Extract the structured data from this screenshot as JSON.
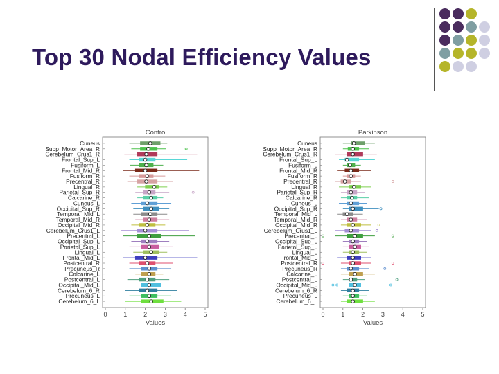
{
  "slide": {
    "title": "Top 30 Nodal Efficiency Values",
    "colors": {
      "title": "#2e1a5c",
      "dot_purple": "#4a2c5e",
      "dot_teal": "#7f9ea2",
      "dot_olive": "#b5b52a",
      "dot_lavender": "#cfcfe2"
    }
  },
  "chart_data": [
    {
      "type": "box",
      "title": "Contro",
      "xlabel": "Values",
      "xlim": [
        0,
        5
      ],
      "xticks": [
        "0",
        "1",
        "2",
        "3",
        "4",
        "5"
      ],
      "categories": [
        "Cuneus",
        "Supp_Motor_Area_R",
        "Cerebelum_Crus1_R",
        "Frontal_Sup_L",
        "Fusiform_L",
        "Frontal_Mid_R",
        "Fusiform_R",
        "Precentral_R",
        "Lingual_R",
        "Parietal_Sup_R",
        "Calcarine_R",
        "Cuneus_L",
        "Occipital_Sup_R",
        "Temporal_Mid_L",
        "Temporal_Mid_R",
        "Occipital_Mid_R",
        "Cerebelum_Crus1_L",
        "Precentral_L",
        "Occipital_Sup_L",
        "Parietal_Sup_L",
        "Lingual_L",
        "Frontal_Mid_L",
        "Postcentral_R",
        "Precuneus_R",
        "Calcarine_L",
        "Postcentral_L",
        "Occipital_Mid_L",
        "Cerebelum_6_R",
        "Precuneus_L",
        "Cerebelum_6_L"
      ],
      "colors": [
        "#6e9f6a",
        "#4cc24c",
        "#b03a5a",
        "#59d6d6",
        "#4db04d",
        "#7a2a1a",
        "#d79a9a",
        "#d6a3a3",
        "#7fcf4f",
        "#c7a6c7",
        "#59cfa6",
        "#5f9fd6",
        "#3f8fbf",
        "#8a8a8a",
        "#cf7f9f",
        "#bfbf3f",
        "#a58fd6",
        "#3f9f3f",
        "#9f7fbf",
        "#c95f9f",
        "#9fbf5f",
        "#3f3fbf",
        "#df4f6f",
        "#5f8fcf",
        "#bf9f4f",
        "#4f9f7f",
        "#4fbfdf",
        "#2f7f9f",
        "#3fbf5f",
        "#6fdf3f"
      ],
      "series": [
        {
          "name": "Cuneus",
          "values": [
            1.2,
            1.75,
            2.25,
            2.75,
            3.1
          ],
          "outliers": []
        },
        {
          "name": "Supp_Motor_Area_R",
          "values": [
            1.3,
            1.75,
            2.15,
            2.6,
            3.05
          ],
          "outliers": [
            4.05
          ]
        },
        {
          "name": "Cerebelum_Crus1_R",
          "values": [
            0.95,
            1.6,
            2.05,
            2.6,
            4.6
          ],
          "outliers": []
        },
        {
          "name": "Frontal_Sup_L",
          "values": [
            1.2,
            1.7,
            2.0,
            2.5,
            4.1
          ],
          "outliers": []
        },
        {
          "name": "Fusiform_L",
          "values": [
            1.25,
            1.7,
            2.05,
            2.4,
            2.9
          ],
          "outliers": []
        },
        {
          "name": "Frontal_Mid_R",
          "values": [
            0.9,
            1.5,
            2.0,
            2.6,
            4.7
          ],
          "outliers": []
        },
        {
          "name": "Fusiform_R",
          "values": [
            1.2,
            1.7,
            2.1,
            2.4,
            3.0
          ],
          "outliers": []
        },
        {
          "name": "Precentral_R",
          "values": [
            1.1,
            1.6,
            2.05,
            2.6,
            3.4
          ],
          "outliers": []
        },
        {
          "name": "Lingual_R",
          "values": [
            1.6,
            2.0,
            2.45,
            2.7,
            3.1
          ],
          "outliers": []
        },
        {
          "name": "Parietal_Sup_R",
          "values": [
            1.5,
            1.9,
            2.2,
            2.5,
            3.2
          ],
          "outliers": [
            4.4
          ]
        },
        {
          "name": "Calcarine_R",
          "values": [
            1.6,
            1.9,
            2.3,
            2.6,
            2.9
          ],
          "outliers": []
        },
        {
          "name": "Cuneus_L",
          "values": [
            1.3,
            1.8,
            2.1,
            2.6,
            3.3
          ],
          "outliers": []
        },
        {
          "name": "Occipital_Sup_R",
          "values": [
            1.4,
            1.9,
            2.3,
            2.7,
            3.2
          ],
          "outliers": []
        },
        {
          "name": "Temporal_Mid_L",
          "values": [
            1.4,
            1.8,
            2.25,
            2.6,
            3.1
          ],
          "outliers": []
        },
        {
          "name": "Temporal_Mid_R",
          "values": [
            1.5,
            1.9,
            2.2,
            2.6,
            3.2
          ],
          "outliers": []
        },
        {
          "name": "Occipital_Mid_R",
          "values": [
            1.3,
            1.7,
            2.1,
            2.5,
            3.0
          ],
          "outliers": []
        },
        {
          "name": "Cerebelum_Crus1_L",
          "values": [
            0.8,
            1.6,
            2.0,
            2.6,
            4.2
          ],
          "outliers": []
        },
        {
          "name": "Precentral_L",
          "values": [
            0.9,
            1.6,
            2.2,
            2.8,
            4.5
          ],
          "outliers": []
        },
        {
          "name": "Occipital_Sup_L",
          "values": [
            1.3,
            1.8,
            2.1,
            2.6,
            3.2
          ],
          "outliers": []
        },
        {
          "name": "Parietal_Sup_L",
          "values": [
            1.2,
            1.8,
            2.2,
            2.7,
            3.4
          ],
          "outliers": []
        },
        {
          "name": "Lingual_L",
          "values": [
            1.4,
            1.9,
            2.3,
            2.7,
            3.1
          ],
          "outliers": []
        },
        {
          "name": "Frontal_Mid_L",
          "values": [
            0.9,
            1.5,
            2.0,
            2.6,
            4.6
          ],
          "outliers": []
        },
        {
          "name": "Postcentral_R",
          "values": [
            1.2,
            1.7,
            2.1,
            2.5,
            3.4
          ],
          "outliers": []
        },
        {
          "name": "Precuneus_R",
          "values": [
            1.2,
            1.8,
            2.2,
            2.6,
            3.3
          ],
          "outliers": []
        },
        {
          "name": "Calcarine_L",
          "values": [
            1.5,
            1.8,
            2.2,
            2.5,
            2.9
          ],
          "outliers": []
        },
        {
          "name": "Postcentral_L",
          "values": [
            1.1,
            1.7,
            2.1,
            2.5,
            3.2
          ],
          "outliers": []
        },
        {
          "name": "Occipital_Mid_L",
          "values": [
            1.2,
            1.8,
            2.2,
            2.8,
            3.4
          ],
          "outliers": []
        },
        {
          "name": "Cerebelum_6_R",
          "values": [
            1.0,
            1.7,
            2.1,
            2.6,
            3.6
          ],
          "outliers": []
        },
        {
          "name": "Precuneus_L",
          "values": [
            1.2,
            1.8,
            2.2,
            2.6,
            3.3
          ],
          "outliers": []
        },
        {
          "name": "Cerebelum_6_L",
          "values": [
            1.0,
            1.8,
            2.3,
            2.9,
            3.8
          ],
          "outliers": []
        }
      ]
    },
    {
      "type": "box",
      "title": "Parkinson",
      "xlabel": "Values",
      "xlim": [
        0,
        5
      ],
      "xticks": [
        "0",
        "1",
        "2",
        "3",
        "4",
        "5"
      ],
      "categories": [
        "Cuneus",
        "Supp_Motor_Area_R",
        "Cerebelum_Crus1_R",
        "Frontal_Sup_L",
        "Fusiform_L",
        "Frontal_Mid_R",
        "Fusiform_R",
        "Precentral_R",
        "Lingual_R",
        "Parietal_Sup_R",
        "Calcarine_R",
        "Cuneus_L",
        "Occipital_Sup_R",
        "Temporal_Mid_L",
        "Temporal_Mid_R",
        "Occipital_Mid_R",
        "Cerebelum_Crus1_L",
        "Precentral_L",
        "Occipital_Sup_L",
        "Parietal_Sup_L",
        "Lingual_L",
        "Frontal_Mid_L",
        "Postcentral_R",
        "Precuneus_R",
        "Calcarine_L",
        "Postcentral_L",
        "Occipital_Mid_L",
        "Cerebelum_6_R",
        "Precuneus_L",
        "Cerebelum_6_L"
      ],
      "colors": [
        "#6e9f6a",
        "#4cc24c",
        "#b03a5a",
        "#59d6d6",
        "#4db04d",
        "#7a2a1a",
        "#d79a9a",
        "#d6a3a3",
        "#7fcf4f",
        "#c7a6c7",
        "#59cfa6",
        "#5f9fd6",
        "#3f8fbf",
        "#8a8a8a",
        "#cf7f9f",
        "#bfbf3f",
        "#a58fd6",
        "#3f9f3f",
        "#9f7fbf",
        "#c95f9f",
        "#9fbf5f",
        "#3f3fbf",
        "#df4f6f",
        "#5f8fcf",
        "#bf9f4f",
        "#4f9f7f",
        "#4fbfdf",
        "#2f7f9f",
        "#3fbf5f",
        "#6fdf3f"
      ],
      "series": [
        {
          "name": "Cuneus",
          "values": [
            1.0,
            1.4,
            1.55,
            2.1,
            2.6
          ],
          "outliers": []
        },
        {
          "name": "Supp_Motor_Area_R",
          "values": [
            1.0,
            1.25,
            1.5,
            1.8,
            2.3
          ],
          "outliers": []
        },
        {
          "name": "Cerebelum_Crus1_R",
          "values": [
            0.6,
            1.2,
            1.5,
            2.0,
            2.7
          ],
          "outliers": []
        },
        {
          "name": "Frontal_Sup_L",
          "values": [
            0.8,
            1.1,
            1.2,
            1.8,
            2.6
          ],
          "outliers": []
        },
        {
          "name": "Fusiform_L",
          "values": [
            1.0,
            1.2,
            1.35,
            1.6,
            1.9
          ],
          "outliers": []
        },
        {
          "name": "Frontal_Mid_R",
          "values": [
            0.7,
            1.1,
            1.4,
            1.8,
            2.4
          ],
          "outliers": []
        },
        {
          "name": "Fusiform_R",
          "values": [
            1.0,
            1.2,
            1.4,
            1.6,
            1.9
          ],
          "outliers": []
        },
        {
          "name": "Precentral_R",
          "values": [
            0.6,
            0.9,
            1.1,
            1.4,
            1.9
          ],
          "outliers": [
            3.5
          ]
        },
        {
          "name": "Lingual_R",
          "values": [
            0.8,
            1.3,
            1.55,
            1.9,
            2.4
          ],
          "outliers": []
        },
        {
          "name": "Parietal_Sup_R",
          "values": [
            0.9,
            1.2,
            1.4,
            1.7,
            2.1
          ],
          "outliers": []
        },
        {
          "name": "Calcarine_R",
          "values": [
            0.9,
            1.2,
            1.45,
            1.7,
            2.3
          ],
          "outliers": []
        },
        {
          "name": "Cuneus_L",
          "values": [
            0.8,
            1.2,
            1.4,
            1.8,
            2.2
          ],
          "outliers": []
        },
        {
          "name": "Occipital_Sup_R",
          "values": [
            1.0,
            1.3,
            1.5,
            2.0,
            2.8
          ],
          "outliers": [
            2.9
          ]
        },
        {
          "name": "Temporal_Mid_L",
          "values": [
            0.7,
            1.0,
            1.2,
            1.5,
            2.0
          ],
          "outliers": []
        },
        {
          "name": "Temporal_Mid_R",
          "values": [
            0.9,
            1.2,
            1.4,
            1.7,
            2.2
          ],
          "outliers": []
        },
        {
          "name": "Occipital_Mid_R",
          "values": [
            0.9,
            1.2,
            1.5,
            1.9,
            2.4
          ],
          "outliers": [
            2.8
          ]
        },
        {
          "name": "Cerebelum_Crus1_L",
          "values": [
            0.6,
            1.1,
            1.4,
            1.8,
            2.4
          ],
          "outliers": [
            2.7
          ]
        },
        {
          "name": "Precentral_L",
          "values": [
            0.6,
            1.2,
            1.6,
            2.0,
            2.6
          ],
          "outliers": [
            0.0,
            3.5
          ]
        },
        {
          "name": "Occipital_Sup_L",
          "values": [
            1.0,
            1.3,
            1.5,
            1.8,
            2.2
          ],
          "outliers": []
        },
        {
          "name": "Parietal_Sup_L",
          "values": [
            1.0,
            1.3,
            1.6,
            1.9,
            2.3
          ],
          "outliers": []
        },
        {
          "name": "Lingual_L",
          "values": [
            1.0,
            1.3,
            1.5,
            1.8,
            2.2
          ],
          "outliers": []
        },
        {
          "name": "Frontal_Mid_L",
          "values": [
            0.7,
            1.2,
            1.5,
            1.9,
            2.4
          ],
          "outliers": []
        },
        {
          "name": "Postcentral_R",
          "values": [
            0.9,
            1.3,
            1.5,
            1.9,
            2.4
          ],
          "outliers": [
            0.0,
            3.5
          ]
        },
        {
          "name": "Precuneus_R",
          "values": [
            0.9,
            1.2,
            1.4,
            1.8,
            2.3
          ],
          "outliers": [
            3.1
          ]
        },
        {
          "name": "Calcarine_L",
          "values": [
            0.9,
            1.3,
            1.6,
            2.0,
            2.6
          ],
          "outliers": []
        },
        {
          "name": "Postcentral_L",
          "values": [
            1.0,
            1.3,
            1.4,
            1.7,
            2.1
          ],
          "outliers": [
            3.7
          ]
        },
        {
          "name": "Occipital_Mid_L",
          "values": [
            1.0,
            1.3,
            1.6,
            1.9,
            2.4
          ],
          "outliers": [
            0.5,
            0.7,
            3.4
          ]
        },
        {
          "name": "Cerebelum_6_R",
          "values": [
            0.9,
            1.2,
            1.5,
            1.8,
            2.3
          ],
          "outliers": []
        },
        {
          "name": "Precuneus_L",
          "values": [
            1.0,
            1.3,
            1.5,
            1.8,
            2.2
          ],
          "outliers": []
        },
        {
          "name": "Cerebelum_6_L",
          "values": [
            0.9,
            1.2,
            1.5,
            2.0,
            2.6
          ],
          "outliers": []
        }
      ]
    }
  ]
}
